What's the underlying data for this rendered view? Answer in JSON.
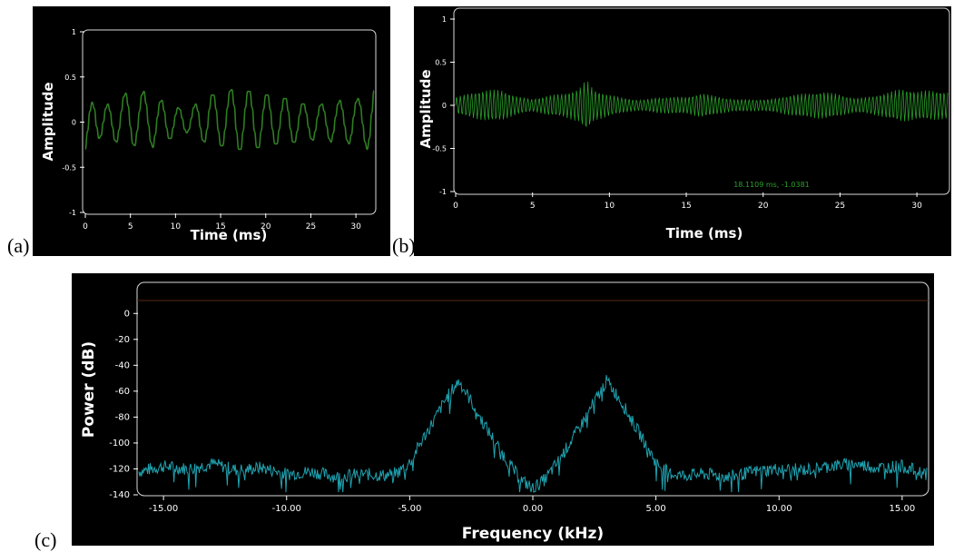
{
  "panels": {
    "a": {
      "label": "(a)"
    },
    "b": {
      "label": "(b)"
    },
    "c": {
      "label": "(c)"
    }
  },
  "chart_data": [
    {
      "id": "a",
      "type": "line",
      "title": "",
      "xlabel": "Time (ms)",
      "ylabel": "Amplitude",
      "xlim": [
        0,
        32
      ],
      "ylim": [
        -1,
        1
      ],
      "xticks": [
        "0",
        "5",
        "10",
        "15",
        "20",
        "25",
        "30"
      ],
      "yticks": [
        "1",
        "0.5",
        "0",
        "-0.5",
        "-1"
      ],
      "grid": false,
      "series": [
        {
          "color": "#2e7d22",
          "x": [
            0,
            0.25,
            0.5,
            0.75,
            1,
            1.25,
            1.5,
            1.75,
            2,
            2.25,
            2.5,
            2.75,
            3,
            3.25,
            3.5,
            3.75,
            4,
            4.25,
            4.5,
            4.75,
            5,
            5.25,
            5.5,
            5.75,
            6,
            6.25,
            6.5,
            6.75,
            7,
            7.25,
            7.5,
            7.75,
            8,
            8.25,
            8.5,
            8.75,
            9,
            9.25,
            9.5,
            9.75,
            10,
            10.25,
            10.5,
            10.75,
            11,
            11.25,
            11.5,
            11.75,
            12,
            12.25,
            12.5,
            12.75,
            13,
            13.25,
            13.5,
            13.75,
            14,
            14.25,
            14.5,
            14.75,
            15,
            15.25,
            15.5,
            15.75,
            16,
            16.25,
            16.5,
            16.75,
            17,
            17.25,
            17.5,
            17.75,
            18,
            18.25,
            18.5,
            18.75,
            19,
            19.25,
            19.5,
            19.75,
            20,
            20.25,
            20.5,
            20.75,
            21,
            21.25,
            21.5,
            21.75,
            22,
            22.25,
            22.5,
            22.75,
            23,
            23.25,
            23.5,
            23.75,
            24,
            24.25,
            24.5,
            24.75,
            25,
            25.25,
            25.5,
            25.75,
            26,
            26.25,
            26.5,
            26.75,
            27,
            27.25,
            27.5,
            27.75,
            28,
            28.25,
            28.5,
            28.75,
            29,
            29.25,
            29.5,
            29.75,
            30,
            30.25,
            30.5,
            30.75,
            31,
            31.25,
            31.5,
            31.75,
            32
          ],
          "y": [
            -0.3,
            -0.1,
            0.12,
            0.22,
            0.15,
            -0.05,
            -0.18,
            -0.15,
            0.0,
            0.15,
            0.2,
            0.12,
            -0.05,
            -0.2,
            -0.22,
            -0.08,
            0.12,
            0.28,
            0.32,
            0.18,
            -0.05,
            -0.24,
            -0.26,
            -0.1,
            0.12,
            0.3,
            0.34,
            0.2,
            -0.03,
            -0.22,
            -0.28,
            -0.14,
            0.06,
            0.22,
            0.24,
            0.12,
            -0.06,
            -0.18,
            -0.18,
            -0.06,
            0.08,
            0.16,
            0.14,
            0.04,
            -0.08,
            -0.12,
            -0.08,
            0.04,
            0.16,
            0.2,
            0.12,
            -0.06,
            -0.2,
            -0.22,
            -0.08,
            0.14,
            0.3,
            0.3,
            0.14,
            -0.1,
            -0.26,
            -0.26,
            -0.08,
            0.16,
            0.34,
            0.36,
            0.18,
            -0.1,
            -0.3,
            -0.3,
            -0.1,
            0.16,
            0.34,
            0.34,
            0.16,
            -0.1,
            -0.28,
            -0.28,
            -0.1,
            0.14,
            0.3,
            0.3,
            0.14,
            -0.08,
            -0.24,
            -0.24,
            -0.08,
            0.12,
            0.26,
            0.26,
            0.12,
            -0.08,
            -0.22,
            -0.22,
            -0.1,
            0.08,
            0.2,
            0.2,
            0.1,
            -0.06,
            -0.18,
            -0.2,
            -0.1,
            0.06,
            0.18,
            0.2,
            0.12,
            -0.04,
            -0.18,
            -0.22,
            -0.12,
            0.06,
            0.2,
            0.24,
            0.14,
            -0.04,
            -0.2,
            -0.24,
            -0.14,
            0.06,
            0.22,
            0.26,
            0.18,
            -0.02,
            -0.22,
            -0.3,
            -0.18,
            0.1,
            0.35
          ]
        }
      ]
    },
    {
      "id": "b",
      "type": "line",
      "title": "",
      "xlabel": "Time (ms)",
      "ylabel": "Amplitude",
      "xlim": [
        0,
        32
      ],
      "ylim": [
        -1,
        1
      ],
      "xticks": [
        "0",
        "5",
        "10",
        "15",
        "20",
        "25",
        "30"
      ],
      "yticks": [
        "1",
        "0.5",
        "0",
        "-0.5",
        "-1"
      ],
      "grid": false,
      "annotation": "18.1109 ms, -1.0381",
      "series": [
        {
          "color": "#2aa12a",
          "x_range": [
            0,
            32
          ],
          "n_samples": 640,
          "envelope_x": [
            0,
            1,
            2,
            3,
            4,
            5,
            6,
            7,
            8,
            8.5,
            9,
            10,
            11,
            12,
            13,
            14,
            15,
            16,
            17,
            18,
            19,
            20,
            21,
            22,
            23,
            24,
            25,
            26,
            27,
            28,
            29,
            30,
            31,
            32
          ],
          "envelope_y": [
            0.12,
            0.15,
            0.18,
            0.2,
            0.15,
            0.12,
            0.18,
            0.17,
            0.2,
            0.3,
            0.18,
            0.14,
            0.12,
            0.1,
            0.14,
            0.12,
            0.1,
            0.14,
            0.12,
            0.1,
            0.12,
            0.1,
            0.11,
            0.13,
            0.14,
            0.18,
            0.18,
            0.14,
            0.16,
            0.18,
            0.2,
            0.16,
            0.2,
            0.22
          ]
        }
      ]
    },
    {
      "id": "c",
      "type": "line",
      "title": "",
      "xlabel": "Frequency (kHz)",
      "ylabel": "Power (dB)",
      "xlim": [
        -16,
        16
      ],
      "ylim": [
        -140,
        10
      ],
      "xticks": [
        "-15.00",
        "-10.00",
        "-5.00",
        "0.00",
        "5.00",
        "10.00",
        "15.00"
      ],
      "yticks": [
        "0",
        "-20",
        "-40",
        "-60",
        "-80",
        "-100",
        "-120",
        "-140"
      ],
      "grid": false,
      "series": [
        {
          "color": "#1fa2b0",
          "x": [
            -16,
            -15,
            -14,
            -13,
            -12,
            -11,
            -10,
            -9,
            -8,
            -7,
            -6,
            -5.5,
            -5,
            -4.5,
            -4,
            -3.5,
            -3,
            -2.5,
            -2,
            -1.5,
            -1,
            -0.5,
            0,
            0.5,
            1,
            1.5,
            2,
            2.5,
            3,
            3.5,
            4,
            4.5,
            5,
            5.5,
            6,
            7,
            8,
            9,
            10,
            11,
            12,
            13,
            14,
            15,
            16
          ],
          "y": [
            -122,
            -118,
            -120,
            -116,
            -121,
            -119,
            -124,
            -122,
            -126,
            -124,
            -125,
            -123,
            -115,
            -98,
            -82,
            -65,
            -52,
            -68,
            -85,
            -100,
            -115,
            -128,
            -135,
            -128,
            -115,
            -100,
            -85,
            -68,
            -52,
            -65,
            -82,
            -98,
            -115,
            -123,
            -125,
            -124,
            -126,
            -122,
            -120,
            -121,
            -118,
            -116,
            -119,
            -118,
            -124
          ]
        }
      ]
    }
  ]
}
